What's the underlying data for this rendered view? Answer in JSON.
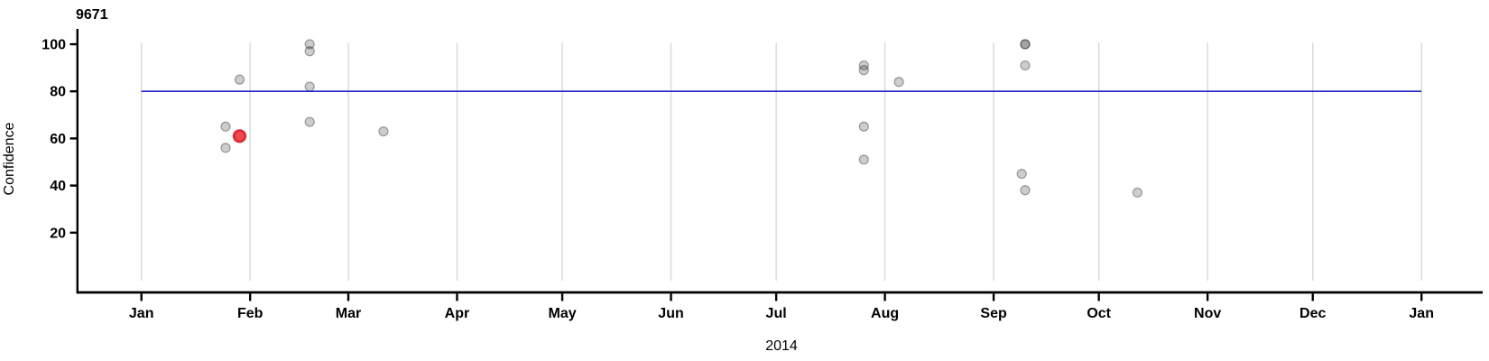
{
  "chart_data": {
    "type": "scatter",
    "title": "9671",
    "ylabel": "Confidence",
    "xlabel_year": "2014",
    "x_axis": {
      "unit": "month",
      "start": "2014-01-01",
      "end": "2015-01-01",
      "tick_labels": [
        "Jan",
        "Feb",
        "Mar",
        "Apr",
        "May",
        "Jun",
        "Jul",
        "Aug",
        "Sep",
        "Oct",
        "Nov",
        "Dec",
        "Jan"
      ],
      "grid": true
    },
    "y_axis": {
      "tick_values": [
        20,
        40,
        60,
        80,
        100
      ],
      "range": [
        0,
        105
      ]
    },
    "reference_line": {
      "value": 80
    },
    "points": [
      {
        "date": "2014-01-25",
        "confidence": 65,
        "color": "gray"
      },
      {
        "date": "2014-01-25",
        "confidence": 56,
        "color": "gray"
      },
      {
        "date": "2014-01-29",
        "confidence": 61,
        "color": "red"
      },
      {
        "date": "2014-01-29",
        "confidence": 85,
        "color": "gray"
      },
      {
        "date": "2014-02-18",
        "confidence": 100,
        "color": "gray"
      },
      {
        "date": "2014-02-18",
        "confidence": 97,
        "color": "gray"
      },
      {
        "date": "2014-02-18",
        "confidence": 82,
        "color": "gray"
      },
      {
        "date": "2014-02-18",
        "confidence": 67,
        "color": "gray"
      },
      {
        "date": "2014-03-11",
        "confidence": 63,
        "color": "gray"
      },
      {
        "date": "2014-07-26",
        "confidence": 91,
        "color": "gray"
      },
      {
        "date": "2014-07-26",
        "confidence": 89,
        "color": "gray"
      },
      {
        "date": "2014-07-26",
        "confidence": 65,
        "color": "gray"
      },
      {
        "date": "2014-07-26",
        "confidence": 51,
        "color": "gray"
      },
      {
        "date": "2014-08-05",
        "confidence": 84,
        "color": "gray"
      },
      {
        "date": "2014-09-10",
        "confidence": 100,
        "color": "gray"
      },
      {
        "date": "2014-09-10",
        "confidence": 100,
        "color": "gray"
      },
      {
        "date": "2014-09-10",
        "confidence": 91,
        "color": "gray"
      },
      {
        "date": "2014-09-09",
        "confidence": 45,
        "color": "gray"
      },
      {
        "date": "2014-09-10",
        "confidence": 38,
        "color": "gray"
      },
      {
        "date": "2014-10-12",
        "confidence": 37,
        "color": "gray"
      }
    ],
    "style": {
      "gray_point_fill": "rgba(0,0,0,0.195)",
      "gray_point_stroke": "rgba(0,0,0,0.32)",
      "red_point_fill": "#f0484e",
      "red_point_stroke": "#dd2832",
      "reference_line_color": "#2323cc",
      "grid_color": "#d9d9d9",
      "axis_color": "#000000"
    }
  }
}
